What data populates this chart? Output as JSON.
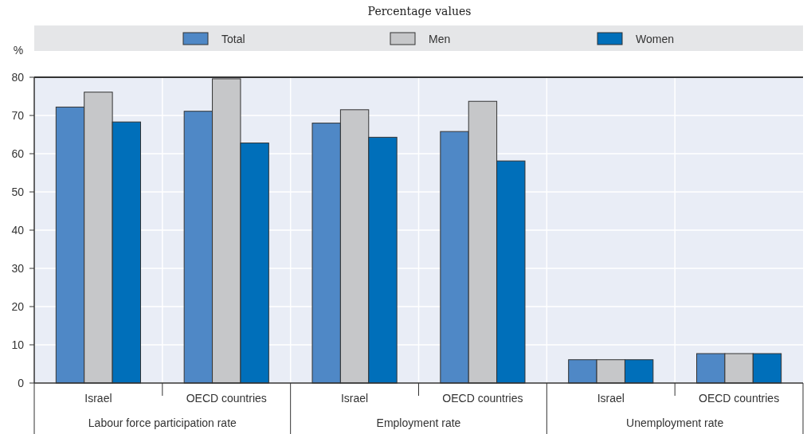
{
  "chart_data": {
    "type": "bar",
    "subtitle": "Percentage values",
    "ylabel": "%",
    "categories": [
      "Israel",
      "OECD countries",
      "Israel",
      "OECD countries",
      "Israel",
      "OECD countries"
    ],
    "series": [
      {
        "name": "Total",
        "color": "#4f88c6",
        "values": [
          72.2,
          71.1,
          68.0,
          65.8,
          6.1,
          7.7
        ]
      },
      {
        "name": "Men",
        "color": "#c6c7c9",
        "values": [
          76.1,
          79.6,
          71.5,
          73.7,
          6.1,
          7.7
        ]
      },
      {
        "name": "Women",
        "color": "#006fba",
        "values": [
          68.3,
          62.8,
          64.3,
          58.1,
          6.1,
          7.7
        ]
      }
    ],
    "annotations": [
      "Labour force participation rate",
      "Employment rate",
      "Unemployment rate"
    ],
    "ylim": [
      0,
      80
    ],
    "yticks": [
      0,
      10,
      20,
      30,
      40,
      50,
      60,
      70,
      80
    ],
    "grid": true,
    "legend": "top"
  }
}
